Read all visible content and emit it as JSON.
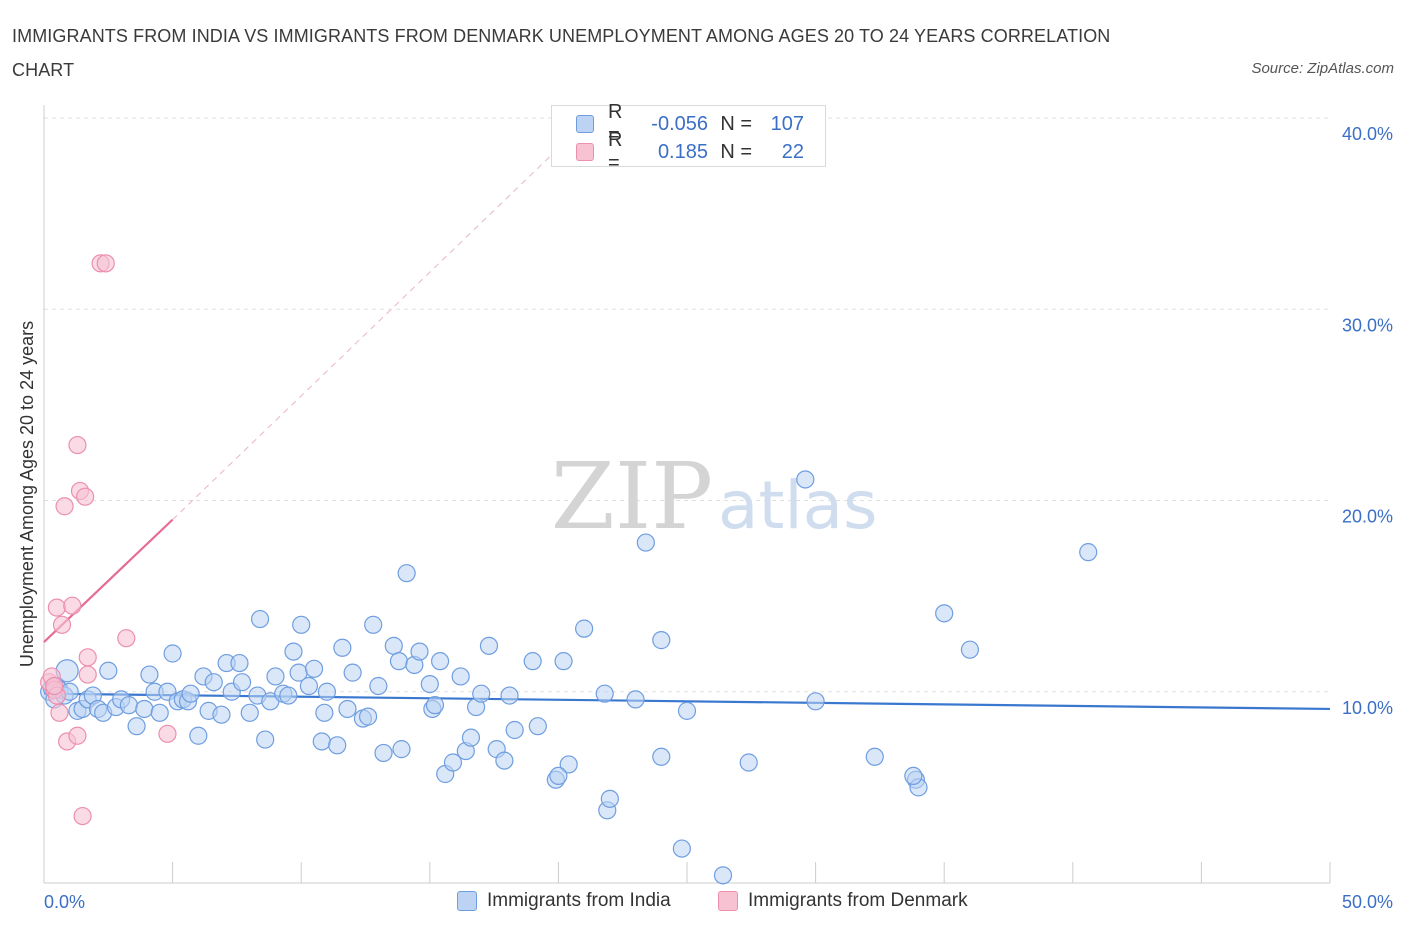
{
  "header": {
    "title": "IMMIGRANTS FROM INDIA VS IMMIGRANTS FROM DENMARK UNEMPLOYMENT AMONG AGES 20 TO 24 YEARS CORRELATION CHART",
    "source": "Source: ZipAtlas.com"
  },
  "watermark": {
    "zip": "ZIP",
    "atlas": "atlas"
  },
  "legend": {
    "rows": [
      {
        "r_label": "R =",
        "r_value": "-0.056",
        "n_label": "N =",
        "n_value": "107"
      },
      {
        "r_label": "R =",
        "r_value": "0.185",
        "n_label": "N =",
        "n_value": "22"
      }
    ]
  },
  "bottom_legend": {
    "india": "Immigrants from India",
    "denmark": "Immigrants from Denmark"
  },
  "colors": {
    "india_fill": "#bcd3f4",
    "india_stroke": "#6f9ee0",
    "india_line": "#3a78d0",
    "denmark_fill": "#f7c3d3",
    "denmark_stroke": "#ec8fae",
    "denmark_line": "#e56c96",
    "axis_label": "#3b6fc6",
    "grid": "#e0e0e0"
  },
  "chart_data": {
    "type": "scatter",
    "title": "IMMIGRANTS FROM INDIA VS IMMIGRANTS FROM DENMARK UNEMPLOYMENT AMONG AGES 20 TO 24 YEARS CORRELATION CHART",
    "xlabel": "",
    "ylabel": "Unemployment Among Ages 20 to 24 years",
    "xlim": [
      0,
      50
    ],
    "ylim": [
      0,
      40
    ],
    "x_tick_labels": [
      "0.0%",
      "50.0%"
    ],
    "y_ticks": [
      10,
      20,
      30,
      40
    ],
    "y_tick_labels": [
      "10.0%",
      "20.0%",
      "30.0%",
      "40.0%"
    ],
    "grid": true,
    "series": [
      {
        "name": "Immigrants from India",
        "R": -0.056,
        "N": 107,
        "trend": {
          "x": [
            0,
            50
          ],
          "y": [
            9.9,
            9.1
          ]
        },
        "points": [
          {
            "x": 0.2,
            "y": 10.0
          },
          {
            "x": 0.3,
            "y": 10.2
          },
          {
            "x": 0.4,
            "y": 9.6
          },
          {
            "x": 0.5,
            "y": 10.3
          },
          {
            "x": 0.6,
            "y": 10.1
          },
          {
            "x": 0.8,
            "y": 9.8
          },
          {
            "x": 0.9,
            "y": 11.1
          },
          {
            "x": 1.0,
            "y": 10.0
          },
          {
            "x": 1.3,
            "y": 9.0
          },
          {
            "x": 1.5,
            "y": 9.1
          },
          {
            "x": 1.7,
            "y": 9.6
          },
          {
            "x": 1.9,
            "y": 9.8
          },
          {
            "x": 2.1,
            "y": 9.1
          },
          {
            "x": 2.3,
            "y": 8.9
          },
          {
            "x": 2.5,
            "y": 11.1
          },
          {
            "x": 2.8,
            "y": 9.2
          },
          {
            "x": 3.0,
            "y": 9.6
          },
          {
            "x": 3.3,
            "y": 9.3
          },
          {
            "x": 3.6,
            "y": 8.2
          },
          {
            "x": 3.9,
            "y": 9.1
          },
          {
            "x": 4.1,
            "y": 10.9
          },
          {
            "x": 4.3,
            "y": 10.0
          },
          {
            "x": 4.5,
            "y": 8.9
          },
          {
            "x": 4.8,
            "y": 10.0
          },
          {
            "x": 5.0,
            "y": 12.0
          },
          {
            "x": 5.2,
            "y": 9.5
          },
          {
            "x": 5.4,
            "y": 9.6
          },
          {
            "x": 5.6,
            "y": 9.5
          },
          {
            "x": 5.7,
            "y": 9.9
          },
          {
            "x": 6.0,
            "y": 7.7
          },
          {
            "x": 6.2,
            "y": 10.8
          },
          {
            "x": 6.4,
            "y": 9.0
          },
          {
            "x": 6.6,
            "y": 10.5
          },
          {
            "x": 6.9,
            "y": 8.8
          },
          {
            "x": 7.1,
            "y": 11.5
          },
          {
            "x": 7.3,
            "y": 10.0
          },
          {
            "x": 7.6,
            "y": 11.5
          },
          {
            "x": 7.7,
            "y": 10.5
          },
          {
            "x": 8.0,
            "y": 8.9
          },
          {
            "x": 8.3,
            "y": 9.8
          },
          {
            "x": 8.4,
            "y": 13.8
          },
          {
            "x": 8.6,
            "y": 7.5
          },
          {
            "x": 8.8,
            "y": 9.5
          },
          {
            "x": 9.0,
            "y": 10.8
          },
          {
            "x": 9.3,
            "y": 9.9
          },
          {
            "x": 9.5,
            "y": 9.8
          },
          {
            "x": 9.7,
            "y": 12.1
          },
          {
            "x": 9.9,
            "y": 11.0
          },
          {
            "x": 10.0,
            "y": 13.5
          },
          {
            "x": 10.3,
            "y": 10.3
          },
          {
            "x": 10.5,
            "y": 11.2
          },
          {
            "x": 10.8,
            "y": 7.4
          },
          {
            "x": 10.9,
            "y": 8.9
          },
          {
            "x": 11.0,
            "y": 10.0
          },
          {
            "x": 11.4,
            "y": 7.2
          },
          {
            "x": 11.6,
            "y": 12.3
          },
          {
            "x": 11.8,
            "y": 9.1
          },
          {
            "x": 12.0,
            "y": 11.0
          },
          {
            "x": 12.4,
            "y": 8.6
          },
          {
            "x": 12.6,
            "y": 8.7
          },
          {
            "x": 12.8,
            "y": 13.5
          },
          {
            "x": 13.0,
            "y": 10.3
          },
          {
            "x": 13.2,
            "y": 6.8
          },
          {
            "x": 13.6,
            "y": 12.4
          },
          {
            "x": 13.8,
            "y": 11.6
          },
          {
            "x": 13.9,
            "y": 7.0
          },
          {
            "x": 14.1,
            "y": 16.2
          },
          {
            "x": 14.4,
            "y": 11.4
          },
          {
            "x": 14.6,
            "y": 12.1
          },
          {
            "x": 15.1,
            "y": 9.1
          },
          {
            "x": 15.0,
            "y": 10.4
          },
          {
            "x": 15.2,
            "y": 9.3
          },
          {
            "x": 15.4,
            "y": 11.6
          },
          {
            "x": 15.6,
            "y": 5.7
          },
          {
            "x": 15.9,
            "y": 6.3
          },
          {
            "x": 16.2,
            "y": 10.8
          },
          {
            "x": 16.4,
            "y": 6.9
          },
          {
            "x": 16.6,
            "y": 7.6
          },
          {
            "x": 16.8,
            "y": 9.2
          },
          {
            "x": 17.0,
            "y": 9.9
          },
          {
            "x": 17.3,
            "y": 12.4
          },
          {
            "x": 17.6,
            "y": 7.0
          },
          {
            "x": 17.9,
            "y": 6.4
          },
          {
            "x": 18.1,
            "y": 9.8
          },
          {
            "x": 18.3,
            "y": 8.0
          },
          {
            "x": 19.0,
            "y": 11.6
          },
          {
            "x": 19.2,
            "y": 8.2
          },
          {
            "x": 19.9,
            "y": 5.4
          },
          {
            "x": 20.2,
            "y": 11.6
          },
          {
            "x": 20.4,
            "y": 6.2
          },
          {
            "x": 21.0,
            "y": 13.3
          },
          {
            "x": 21.8,
            "y": 9.9
          },
          {
            "x": 21.9,
            "y": 3.8
          },
          {
            "x": 22.0,
            "y": 4.4
          },
          {
            "x": 23.0,
            "y": 9.6
          },
          {
            "x": 23.4,
            "y": 17.8
          },
          {
            "x": 24.0,
            "y": 12.7
          },
          {
            "x": 24.8,
            "y": 1.8
          },
          {
            "x": 27.4,
            "y": 6.3
          },
          {
            "x": 24.0,
            "y": 6.6
          },
          {
            "x": 25.0,
            "y": 9.0
          },
          {
            "x": 29.6,
            "y": 21.1
          },
          {
            "x": 30.0,
            "y": 9.5
          },
          {
            "x": 32.3,
            "y": 6.6
          },
          {
            "x": 33.9,
            "y": 5.4
          },
          {
            "x": 35.0,
            "y": 14.1
          },
          {
            "x": 36.0,
            "y": 12.2
          },
          {
            "x": 40.6,
            "y": 17.3
          },
          {
            "x": 34.0,
            "y": 5.0
          },
          {
            "x": 33.8,
            "y": 5.6
          },
          {
            "x": 26.4,
            "y": 0.4
          },
          {
            "x": 20.0,
            "y": 5.6
          }
        ]
      },
      {
        "name": "Immigrants from Denmark",
        "R": 0.185,
        "N": 22,
        "trend": {
          "x": [
            0,
            5
          ],
          "y": [
            12.6,
            19.0
          ]
        },
        "trend_extension": {
          "x": [
            5,
            21
          ],
          "y": [
            19.0,
            39.7
          ]
        },
        "points": [
          {
            "x": 0.2,
            "y": 10.5
          },
          {
            "x": 0.3,
            "y": 10.8
          },
          {
            "x": 0.4,
            "y": 10.1
          },
          {
            "x": 0.5,
            "y": 9.8
          },
          {
            "x": 0.4,
            "y": 10.3
          },
          {
            "x": 0.5,
            "y": 14.4
          },
          {
            "x": 0.6,
            "y": 8.9
          },
          {
            "x": 0.7,
            "y": 13.5
          },
          {
            "x": 0.8,
            "y": 19.7
          },
          {
            "x": 0.9,
            "y": 7.4
          },
          {
            "x": 1.1,
            "y": 14.5
          },
          {
            "x": 1.3,
            "y": 22.9
          },
          {
            "x": 1.3,
            "y": 7.7
          },
          {
            "x": 1.4,
            "y": 20.5
          },
          {
            "x": 1.5,
            "y": 3.5
          },
          {
            "x": 1.6,
            "y": 20.2
          },
          {
            "x": 1.7,
            "y": 10.9
          },
          {
            "x": 1.7,
            "y": 11.8
          },
          {
            "x": 2.2,
            "y": 32.4
          },
          {
            "x": 2.4,
            "y": 32.4
          },
          {
            "x": 3.2,
            "y": 12.8
          },
          {
            "x": 4.8,
            "y": 7.8
          }
        ]
      }
    ]
  }
}
